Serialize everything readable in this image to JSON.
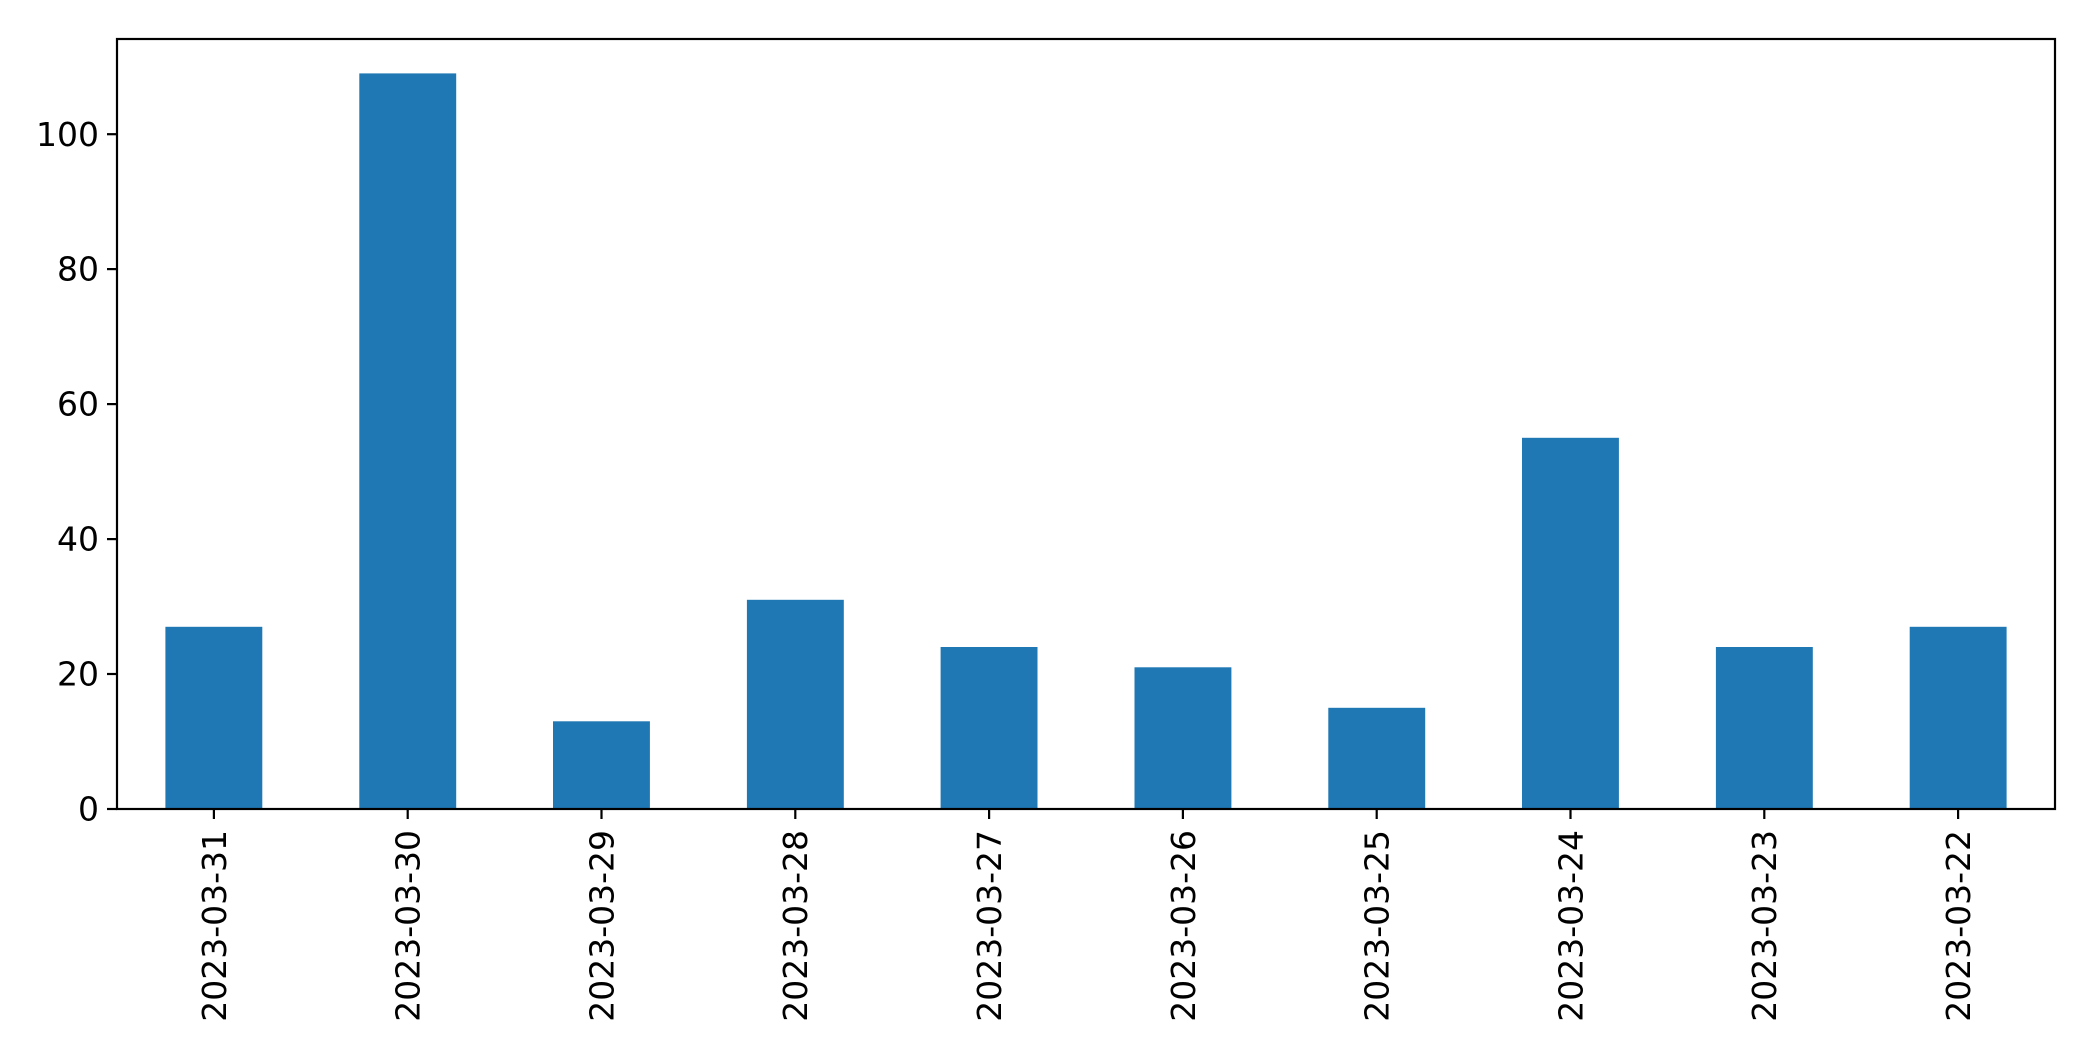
{
  "chart_data": {
    "type": "bar",
    "title": "",
    "xlabel": "",
    "ylabel": "",
    "categories": [
      "2023-03-31",
      "2023-03-30",
      "2023-03-29",
      "2023-03-28",
      "2023-03-27",
      "2023-03-26",
      "2023-03-25",
      "2023-03-24",
      "2023-03-23",
      "2023-03-22"
    ],
    "values": [
      27,
      109,
      13,
      31,
      24,
      21,
      15,
      55,
      24,
      27
    ],
    "yticks": [
      0,
      20,
      40,
      60,
      80,
      100
    ],
    "ylim": [
      0,
      114.1
    ],
    "x_tick_rotation_deg": 90,
    "grid": false,
    "legend_position": "none",
    "bar_color": "#1f77b4",
    "axis_color": "#000000",
    "background_color": "#ffffff",
    "tick_font_px": 33
  }
}
